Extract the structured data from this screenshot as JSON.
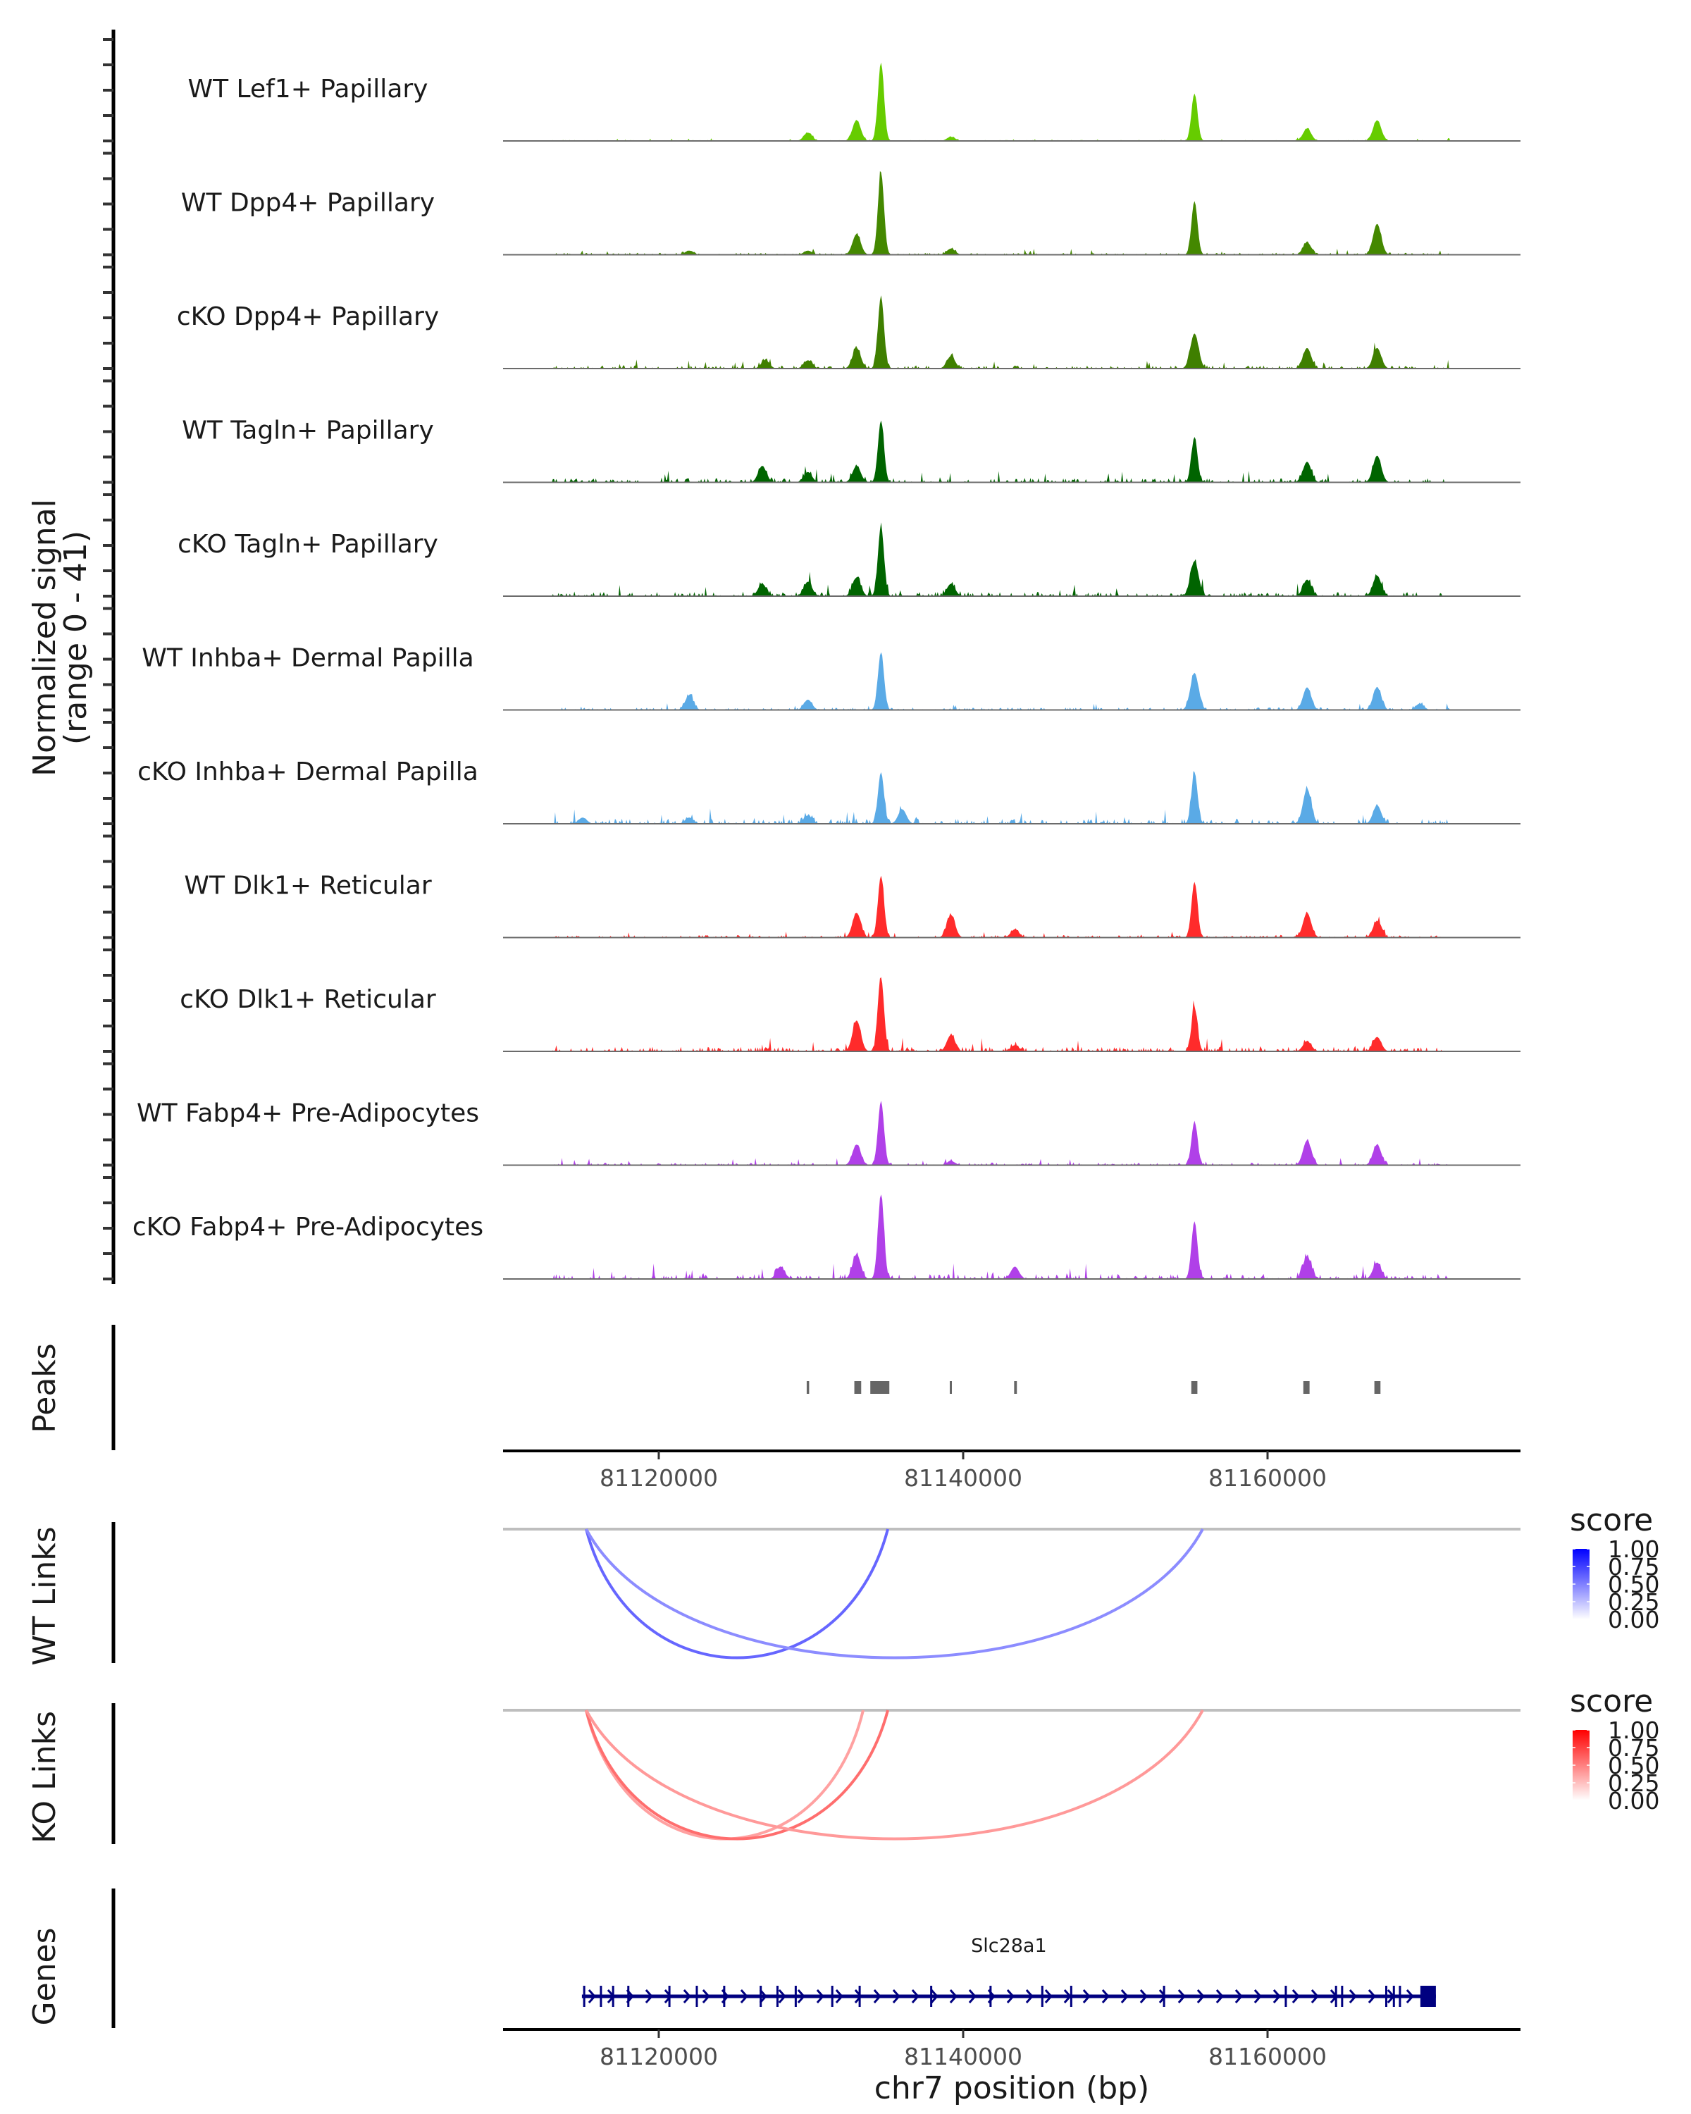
{
  "chart_data": {
    "type": "area",
    "title": "",
    "ylabel": "Normalized signal",
    "ylabel_range": "(range 0 - 41)",
    "ylim": [
      0,
      41
    ],
    "xlabel": "chr7 position (bp)",
    "xlim": [
      81109770,
      81176620
    ],
    "x_ticks": [
      81120000,
      81140000,
      81160000
    ],
    "x_tick_labels": [
      "81120000",
      "81140000",
      "81160000"
    ],
    "hotspots_bp": [
      81115000,
      81122000,
      81127000,
      81129800,
      81133000,
      81134600,
      81139200,
      81143400,
      81155200,
      81162600,
      81167200
    ],
    "tracks": [
      {
        "name": "WT Lef1+ Papillary",
        "color": "#66cc00",
        "peaks": [
          [
            81129800,
            4
          ],
          [
            81133000,
            10
          ],
          [
            81134600,
            38
          ],
          [
            81139200,
            2
          ],
          [
            81155200,
            23
          ],
          [
            81162600,
            6
          ],
          [
            81167200,
            10
          ]
        ],
        "noise": 0.5
      },
      {
        "name": "WT Dpp4+ Papillary",
        "color": "#448800",
        "peaks": [
          [
            81122000,
            2
          ],
          [
            81129800,
            2
          ],
          [
            81133000,
            10
          ],
          [
            81134600,
            40
          ],
          [
            81139200,
            3
          ],
          [
            81155200,
            26
          ],
          [
            81162600,
            6
          ],
          [
            81167200,
            15
          ]
        ],
        "noise": 1
      },
      {
        "name": "cKO Dpp4+ Papillary",
        "color": "#3f7f00",
        "peaks": [
          [
            81127000,
            4
          ],
          [
            81129800,
            4
          ],
          [
            81133000,
            10
          ],
          [
            81134600,
            35
          ],
          [
            81139200,
            6
          ],
          [
            81155200,
            17
          ],
          [
            81162600,
            10
          ],
          [
            81167200,
            10
          ]
        ],
        "noise": 1.5
      },
      {
        "name": "WT Tagln+ Papillary",
        "color": "#006400",
        "peaks": [
          [
            81126800,
            8
          ],
          [
            81129800,
            5
          ],
          [
            81133000,
            8
          ],
          [
            81134600,
            30
          ],
          [
            81155200,
            22
          ],
          [
            81162600,
            10
          ],
          [
            81167200,
            13
          ]
        ],
        "noise": 2
      },
      {
        "name": "cKO Tagln+ Papillary",
        "color": "#006400",
        "peaks": [
          [
            81126800,
            6
          ],
          [
            81129800,
            7
          ],
          [
            81133000,
            9
          ],
          [
            81134600,
            34
          ],
          [
            81139200,
            6
          ],
          [
            81155200,
            17
          ],
          [
            81162600,
            8
          ],
          [
            81167200,
            10
          ]
        ],
        "noise": 2
      },
      {
        "name": "WT Inhba+ Dermal Papilla",
        "color": "#5aaae6",
        "peaks": [
          [
            81122000,
            7
          ],
          [
            81129800,
            5
          ],
          [
            81134600,
            28
          ],
          [
            81155200,
            18
          ],
          [
            81162600,
            11
          ],
          [
            81167200,
            11
          ],
          [
            81170000,
            3
          ]
        ],
        "noise": 1.2
      },
      {
        "name": "cKO Inhba+ Dermal Papilla",
        "color": "#5aaae6",
        "peaks": [
          [
            81115000,
            3
          ],
          [
            81122000,
            3
          ],
          [
            81129800,
            4
          ],
          [
            81134600,
            25
          ],
          [
            81136000,
            7
          ],
          [
            81155200,
            25
          ],
          [
            81162600,
            17
          ],
          [
            81167200,
            9
          ]
        ],
        "noise": 2.5
      },
      {
        "name": "WT Dlk1+ Reticular",
        "color": "#ff2b2b",
        "peaks": [
          [
            81133000,
            12
          ],
          [
            81134600,
            30
          ],
          [
            81139200,
            11
          ],
          [
            81143400,
            4
          ],
          [
            81155200,
            27
          ],
          [
            81162600,
            12
          ],
          [
            81167200,
            8
          ]
        ],
        "noise": 1.2
      },
      {
        "name": "cKO Dlk1+ Reticular",
        "color": "#ff2b2b",
        "peaks": [
          [
            81133000,
            15
          ],
          [
            81134600,
            36
          ],
          [
            81139200,
            8
          ],
          [
            81143400,
            3
          ],
          [
            81155200,
            21
          ],
          [
            81162600,
            5
          ],
          [
            81167200,
            7
          ]
        ],
        "noise": 2.2
      },
      {
        "name": "WT Fabp4+ Pre-Adipocytes",
        "color": "#b040e8",
        "peaks": [
          [
            81133000,
            10
          ],
          [
            81134600,
            31
          ],
          [
            81139200,
            2
          ],
          [
            81155200,
            21
          ],
          [
            81162600,
            12
          ],
          [
            81167200,
            10
          ]
        ],
        "noise": 1.2
      },
      {
        "name": "cKO Fabp4+ Pre-Adipocytes",
        "color": "#b040e8",
        "peaks": [
          [
            81128000,
            6
          ],
          [
            81133000,
            12
          ],
          [
            81134600,
            41
          ],
          [
            81143400,
            6
          ],
          [
            81155200,
            28
          ],
          [
            81162600,
            11
          ],
          [
            81167200,
            8
          ]
        ],
        "noise": 2.5
      }
    ],
    "peaks_track": {
      "label": "Peaks",
      "color": "#666666",
      "regions": [
        [
          81129720,
          81129880
        ],
        [
          81132850,
          81133300
        ],
        [
          81133900,
          81135150
        ],
        [
          81139120,
          81139260
        ],
        [
          81143350,
          81143530
        ],
        [
          81154990,
          81155390
        ],
        [
          81162350,
          81162760
        ],
        [
          81167020,
          81167420
        ]
      ]
    },
    "links": [
      {
        "label": "WT Links",
        "legend_title": "score",
        "legend_ticks": [
          "1.00",
          "0.75",
          "0.50",
          "0.25",
          "0.00"
        ],
        "low_color": "#ffffff",
        "high_color": "#0000ff",
        "arcs": [
          {
            "start": 81115230,
            "end": 81135050,
            "score": 0.45
          },
          {
            "start": 81115230,
            "end": 81155740,
            "score": 0.3
          }
        ]
      },
      {
        "label": "KO Links",
        "legend_title": "score",
        "legend_ticks": [
          "1.00",
          "0.75",
          "0.50",
          "0.25",
          "0.00"
        ],
        "low_color": "#ffffff",
        "high_color": "#ff0000",
        "arcs": [
          {
            "start": 81115230,
            "end": 81133430,
            "score": 0.22
          },
          {
            "start": 81115230,
            "end": 81135050,
            "score": 0.42
          },
          {
            "start": 81115230,
            "end": 81155740,
            "score": 0.25
          }
        ]
      }
    ],
    "genes": {
      "label": "Genes",
      "items": [
        {
          "name": "Slc28a1",
          "start": 81114950,
          "end": 81171060,
          "strand": "+",
          "color": "#000080",
          "exons": [
            81115100,
            81116200,
            81117000,
            81118000,
            81120700,
            81122500,
            81124300,
            81126700,
            81127800,
            81129000,
            81131400,
            81133200,
            81137900,
            81141800,
            81145200,
            81147100,
            81153200,
            81161200,
            81164500,
            81164900,
            81167800,
            81168300,
            81168700,
            81170400
          ]
        }
      ]
    }
  }
}
